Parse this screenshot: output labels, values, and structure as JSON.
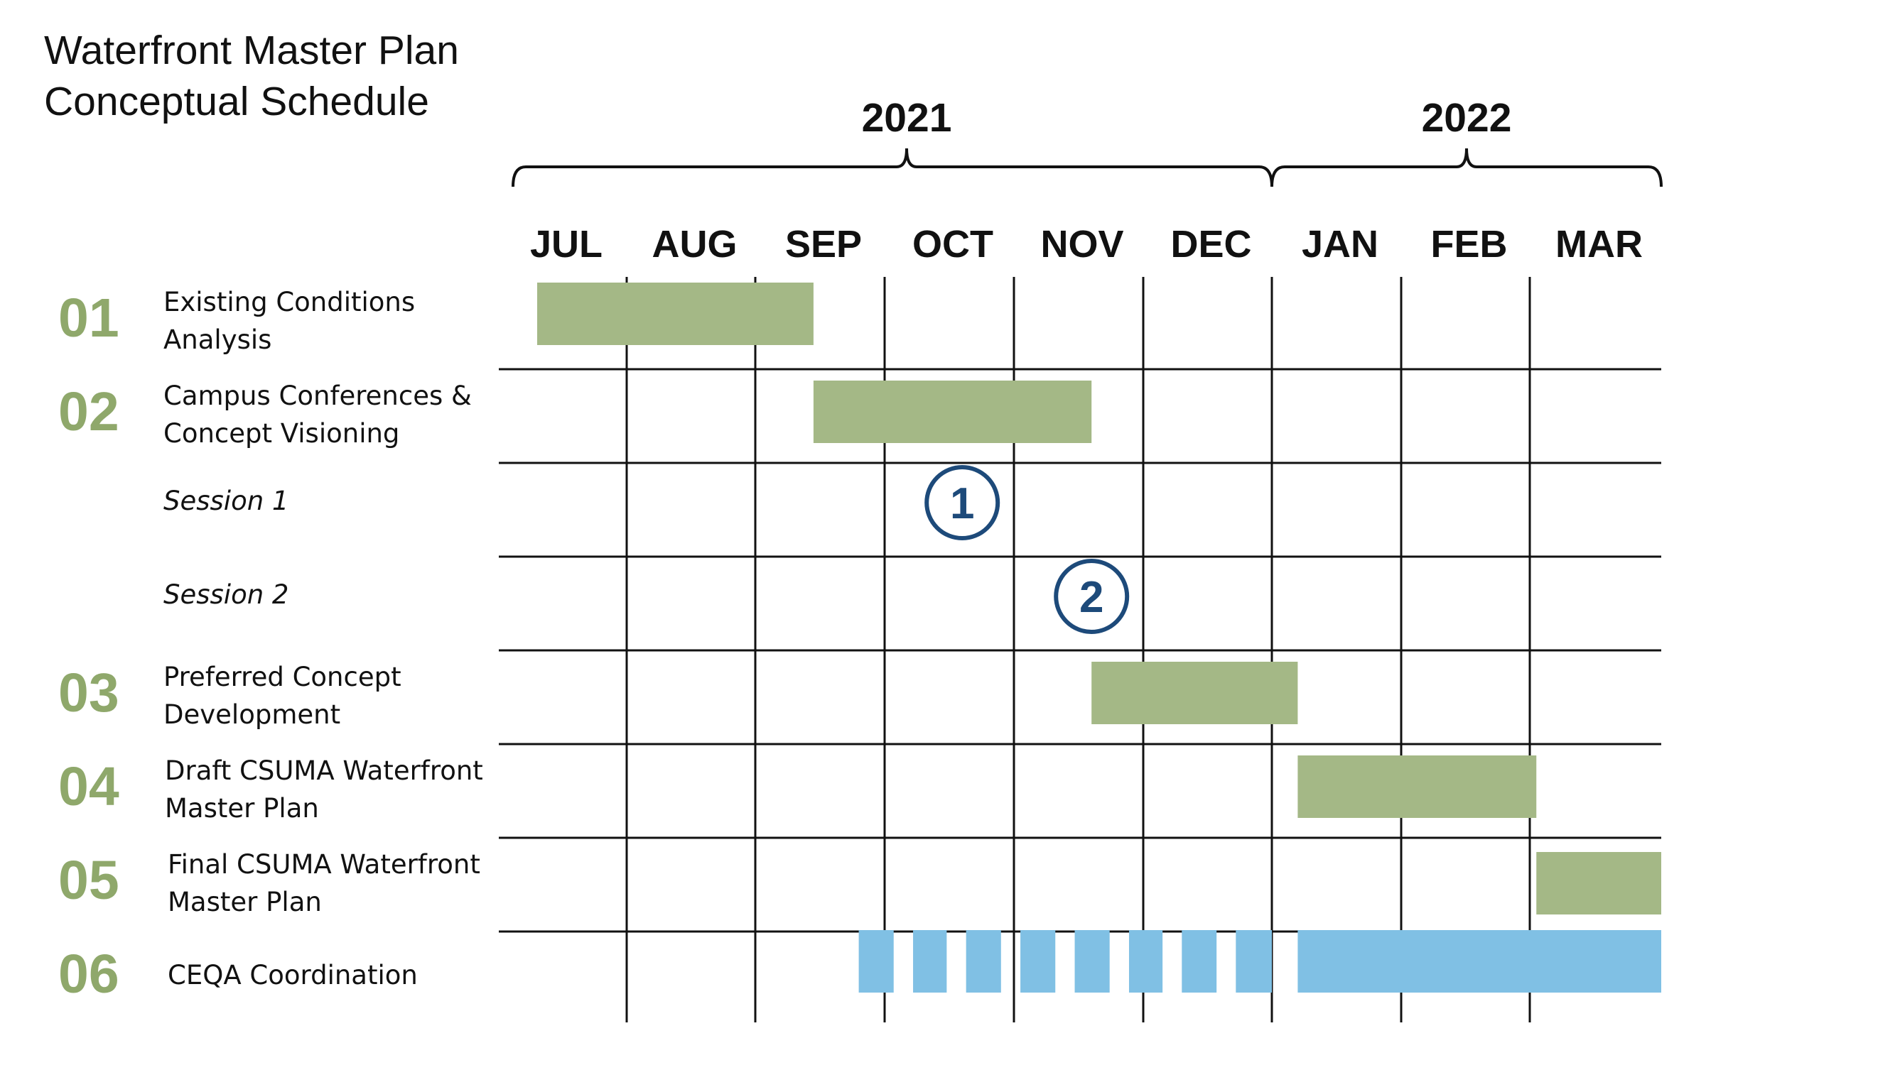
{
  "chart_data": {
    "type": "gantt",
    "title_lines": [
      "Waterfront Master Plan",
      "Conceptual Schedule"
    ],
    "years": [
      {
        "label": "2021",
        "months": [
          "JUL",
          "AUG",
          "SEP",
          "OCT",
          "NOV",
          "DEC"
        ]
      },
      {
        "label": "2022",
        "months": [
          "JAN",
          "FEB",
          "MAR"
        ]
      }
    ],
    "months": [
      "JUL",
      "AUG",
      "SEP",
      "OCT",
      "NOV",
      "DEC",
      "JAN",
      "FEB",
      "MAR"
    ],
    "rows": [
      {
        "num": "01",
        "label_lines": [
          "Existing Conditions",
          "Analysis"
        ],
        "italic": false,
        "bars": [
          {
            "start": 0.3,
            "end": 2.45
          }
        ]
      },
      {
        "num": "02",
        "label_lines": [
          "Campus Conferences &",
          "Concept Visioning"
        ],
        "italic": false,
        "bars": [
          {
            "start": 2.45,
            "end": 4.6
          }
        ]
      },
      {
        "num": "",
        "label_lines": [
          "Session 1"
        ],
        "italic": true,
        "milestone": {
          "label": "1",
          "at": 3.6
        }
      },
      {
        "num": "",
        "label_lines": [
          "Session 2"
        ],
        "italic": true,
        "milestone": {
          "label": "2",
          "at": 4.6
        }
      },
      {
        "num": "03",
        "label_lines": [
          "Preferred Concept",
          "Development"
        ],
        "italic": false,
        "bars": [
          {
            "start": 4.6,
            "end": 6.2
          }
        ]
      },
      {
        "num": "04",
        "label_lines": [
          "Draft CSUMA Waterfront",
          "Master Plan"
        ],
        "italic": false,
        "bars": [
          {
            "start": 6.2,
            "end": 8.05
          }
        ]
      },
      {
        "num": "05",
        "label_lines": [
          "Final CSUMA Waterfront",
          "Master Plan"
        ],
        "italic": false,
        "bars": [
          {
            "start": 8.05,
            "end": 9.0
          }
        ]
      },
      {
        "num": "06",
        "label_lines": [
          "CEQA Coordination"
        ],
        "italic": false,
        "bars": [
          {
            "start": 2.8,
            "end": 3.07
          },
          {
            "start": 3.22,
            "end": 3.48
          },
          {
            "start": 3.63,
            "end": 3.9
          },
          {
            "start": 4.05,
            "end": 4.32
          },
          {
            "start": 4.47,
            "end": 4.74
          },
          {
            "start": 4.89,
            "end": 5.15
          },
          {
            "start": 5.3,
            "end": 5.57
          },
          {
            "start": 5.72,
            "end": 6.0
          },
          {
            "start": 6.2,
            "end": 9.0
          }
        ],
        "color": "blue"
      }
    ],
    "colors": {
      "phase_bar": "#a4b886",
      "ceqa_bar": "#80c0e4",
      "number": "#8fa86b",
      "milestone": "#1d4a7a",
      "grid": "#111111"
    }
  }
}
